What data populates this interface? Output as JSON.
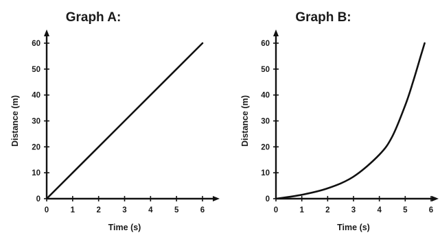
{
  "chart_data": [
    {
      "type": "line",
      "title": "Graph A:",
      "xlabel": "Time (s)",
      "ylabel": "Distance (m)",
      "xlim": [
        0,
        6
      ],
      "ylim": [
        0,
        60
      ],
      "xticks": [
        "0",
        "1",
        "2",
        "3",
        "4",
        "5",
        "6"
      ],
      "yticks": [
        "0",
        "10",
        "20",
        "30",
        "40",
        "50",
        "60"
      ],
      "series": [
        {
          "x": [
            0,
            1,
            2,
            3,
            4,
            5,
            6
          ],
          "y": [
            0,
            10,
            20,
            30,
            40,
            50,
            60
          ]
        }
      ]
    },
    {
      "type": "line",
      "title": "Graph B:",
      "xlabel": "Time (s)",
      "ylabel": "Distance (m)",
      "xlim": [
        0,
        6
      ],
      "ylim": [
        0,
        60
      ],
      "xticks": [
        "0",
        "1",
        "2",
        "3",
        "4",
        "5",
        "6"
      ],
      "yticks": [
        "0",
        "10",
        "20",
        "30",
        "40",
        "50",
        "60"
      ],
      "series": [
        {
          "x": [
            0,
            1,
            2,
            3,
            4,
            4.5,
            5,
            5.3,
            5.6,
            5.75
          ],
          "y": [
            0,
            1.5,
            4,
            8.5,
            17,
            24,
            36,
            45,
            55,
            60
          ]
        }
      ]
    }
  ]
}
